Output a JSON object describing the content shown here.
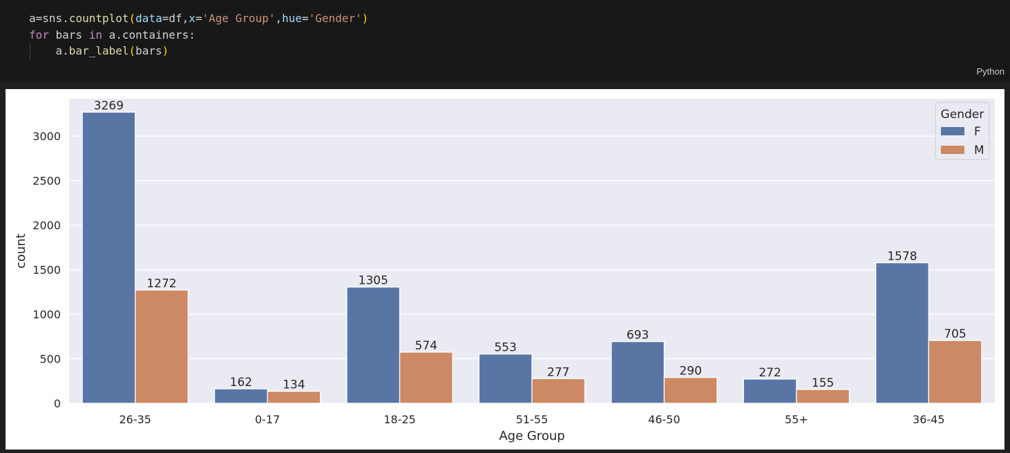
{
  "code_cell": {
    "lines": [
      [
        {
          "t": "a",
          "c": "plain"
        },
        {
          "t": "=",
          "c": "plain"
        },
        {
          "t": "sns",
          "c": "plain"
        },
        {
          "t": ".",
          "c": "plain"
        },
        {
          "t": "countplot",
          "c": "fn"
        },
        {
          "t": "(",
          "c": "paren"
        },
        {
          "t": "data",
          "c": "var"
        },
        {
          "t": "=",
          "c": "plain"
        },
        {
          "t": "df",
          "c": "plain"
        },
        {
          "t": ",",
          "c": "plain"
        },
        {
          "t": "x",
          "c": "var"
        },
        {
          "t": "=",
          "c": "plain"
        },
        {
          "t": "'Age Group'",
          "c": "str"
        },
        {
          "t": ",",
          "c": "plain"
        },
        {
          "t": "hue",
          "c": "var"
        },
        {
          "t": "=",
          "c": "plain"
        },
        {
          "t": "'Gender'",
          "c": "str"
        },
        {
          "t": ")",
          "c": "paren"
        }
      ],
      [
        {
          "t": "for",
          "c": "kw"
        },
        {
          "t": " bars ",
          "c": "plain"
        },
        {
          "t": "in",
          "c": "kw"
        },
        {
          "t": " a.containers:",
          "c": "plain"
        }
      ],
      [
        {
          "t": "    a.",
          "c": "plain"
        },
        {
          "t": "bar_label",
          "c": "fn"
        },
        {
          "t": "(",
          "c": "paren"
        },
        {
          "t": "bars",
          "c": "plain"
        },
        {
          "t": ")",
          "c": "paren"
        }
      ]
    ],
    "language": "Python"
  },
  "chart_data": {
    "type": "bar",
    "categories": [
      "26-35",
      "0-17",
      "18-25",
      "51-55",
      "46-50",
      "55+",
      "36-45"
    ],
    "series": [
      {
        "name": "F",
        "values": [
          3269,
          162,
          1305,
          553,
          693,
          272,
          1578
        ],
        "color": "#5875a4"
      },
      {
        "name": "M",
        "values": [
          1272,
          134,
          574,
          277,
          290,
          155,
          705
        ],
        "color": "#cc8963"
      }
    ],
    "xlabel": "Age Group",
    "ylabel": "count",
    "ylim": [
      0,
      3420
    ],
    "yticks": [
      0,
      500,
      1000,
      1500,
      2000,
      2500,
      3000
    ],
    "legend_title": "Gender",
    "legend_position": "top-right",
    "grid": true,
    "background": "#eaeaf2"
  }
}
